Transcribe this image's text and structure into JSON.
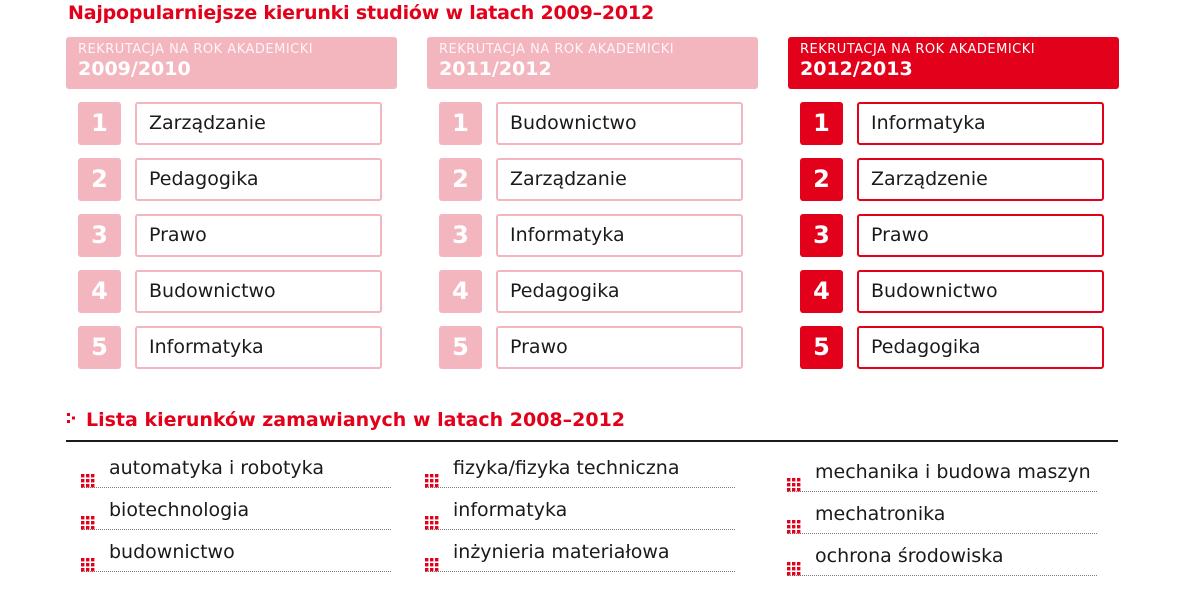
{
  "title": "Najpopularniejsze kierunki studiów w latach 2009–2012",
  "columns": [
    {
      "header_top": "REKRUTACJA NA ROK AKADEMICKI",
      "year": "2009/2010",
      "highlighted": false,
      "items": [
        {
          "rank": "1",
          "name": "Zarządzanie"
        },
        {
          "rank": "2",
          "name": "Pedagogika"
        },
        {
          "rank": "3",
          "name": "Prawo"
        },
        {
          "rank": "4",
          "name": "Budownictwo"
        },
        {
          "rank": "5",
          "name": "Informatyka"
        }
      ]
    },
    {
      "header_top": "REKRUTACJA NA ROK AKADEMICKI",
      "year": "2011/2012",
      "highlighted": false,
      "items": [
        {
          "rank": "1",
          "name": "Budownictwo"
        },
        {
          "rank": "2",
          "name": "Zarządzanie"
        },
        {
          "rank": "3",
          "name": "Informatyka"
        },
        {
          "rank": "4",
          "name": "Pedagogika"
        },
        {
          "rank": "5",
          "name": "Prawo"
        }
      ]
    },
    {
      "header_top": "REKRUTACJA NA ROK AKADEMICKI",
      "year": "2012/2013",
      "highlighted": true,
      "items": [
        {
          "rank": "1",
          "name": "Informatyka"
        },
        {
          "rank": "2",
          "name": "Zarządzenie"
        },
        {
          "rank": "3",
          "name": "Prawo"
        },
        {
          "rank": "4",
          "name": "Budownictwo"
        },
        {
          "rank": "5",
          "name": "Pedagogika"
        }
      ]
    }
  ],
  "list": {
    "title": "Lista kierunków zamawianych w latach 2008–2012",
    "columns": [
      [
        "automatyka i robotyka",
        "biotechnologia",
        "budownictwo"
      ],
      [
        "fizyka/fizyka techniczna",
        "informatyka",
        "inżynieria materiałowa"
      ],
      [
        "mechanika i budowa maszyn",
        "mechatronika",
        "ochrona środowiska"
      ]
    ]
  },
  "colors": {
    "accent": "#e2001a",
    "pale": "#f3b6bf",
    "text": "#1a1a1a"
  },
  "icons": {
    "list_bullet": "grid-dots-icon",
    "section_marker": "colon-dots-icon"
  }
}
